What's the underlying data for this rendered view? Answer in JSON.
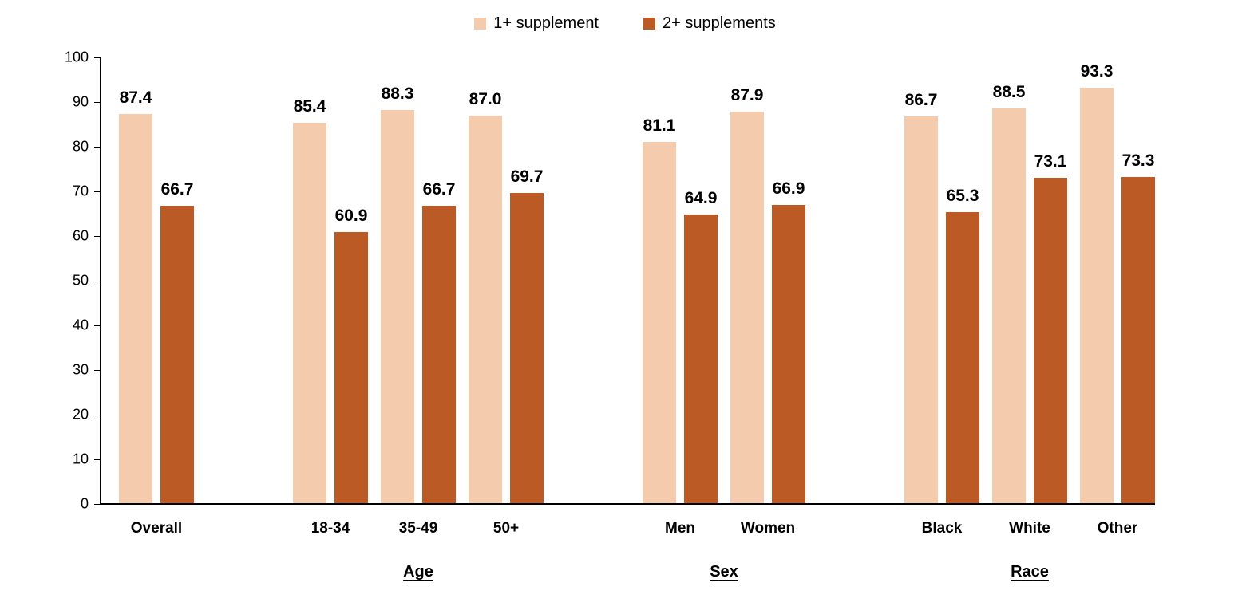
{
  "chart_data": {
    "type": "bar",
    "title": "",
    "xlabel": "",
    "ylabel": "",
    "ylim": [
      0,
      100
    ],
    "ytick_step": 10,
    "grid": false,
    "legend_position": "top-center",
    "groups": [
      {
        "label": "",
        "categories": [
          "Overall"
        ]
      },
      {
        "label": "Age",
        "categories": [
          "18-34",
          "35-49",
          "50+"
        ]
      },
      {
        "label": "Sex",
        "categories": [
          "Men",
          "Women"
        ]
      },
      {
        "label": "Race",
        "categories": [
          "Black",
          "White",
          "Other"
        ]
      }
    ],
    "categories": [
      "Overall",
      "18-34",
      "35-49",
      "50+",
      "Men",
      "Women",
      "Black",
      "White",
      "Other"
    ],
    "series": [
      {
        "name": "1+ supplement",
        "color": "#f5cbad",
        "values": [
          87.4,
          85.4,
          88.3,
          87.0,
          81.1,
          87.9,
          86.7,
          88.5,
          93.3
        ]
      },
      {
        "name": "2+ supplements",
        "color": "#bb5a24",
        "values": [
          66.7,
          60.9,
          66.7,
          69.7,
          64.9,
          66.9,
          65.3,
          73.1,
          73.3
        ]
      }
    ]
  }
}
